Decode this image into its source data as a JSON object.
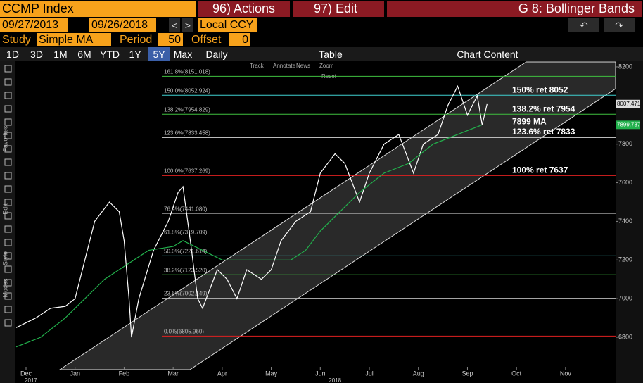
{
  "header": {
    "ticker": "CCMP Index",
    "actions": "96) Actions",
    "edit": "97) Edit",
    "page": "G 8: Bollinger Bands"
  },
  "toolbar": {
    "start": "09/27/2013",
    "end": "09/26/2018",
    "currency": "Local CCY",
    "study_label": "Study",
    "study": "Simple MA",
    "period_label": "Period",
    "period": "50",
    "offset_label": "Offset",
    "offset": "0"
  },
  "ranges": {
    "items": [
      "1D",
      "3D",
      "1M",
      "6M",
      "YTD",
      "1Y",
      "5Y",
      "Max"
    ],
    "selected": 6,
    "frequency": "Daily",
    "table": "Table",
    "content": "Chart Content"
  },
  "chart_tools": [
    "Track",
    "Annotate",
    "News",
    "Zoom",
    "Reset"
  ],
  "side_labels": [
    "Favorites",
    "Edit",
    "Style",
    "Modes"
  ],
  "chart_data": {
    "type": "line",
    "xlim": [
      -0.215,
      12.02
    ],
    "ylim": [
      6647,
      8229
    ],
    "xticks": [
      {
        "value": 0,
        "label": "Dec"
      },
      {
        "value": 1,
        "label": "Jan"
      },
      {
        "value": 2,
        "label": "Feb"
      },
      {
        "value": 3,
        "label": "Mar"
      },
      {
        "value": 4,
        "label": "Apr"
      },
      {
        "value": 5,
        "label": "May"
      },
      {
        "value": 6,
        "label": "Jun"
      },
      {
        "value": 7,
        "label": "Jul"
      },
      {
        "value": 8,
        "label": "Aug"
      },
      {
        "value": 9,
        "label": "Sep"
      },
      {
        "value": 10,
        "label": "Oct"
      },
      {
        "value": 11,
        "label": "Nov"
      }
    ],
    "years": [
      {
        "value": 0.1,
        "label": "2017"
      },
      {
        "value": 6.3,
        "label": "2018"
      }
    ],
    "yticks": [
      6800,
      7000,
      7200,
      7400,
      7600,
      7800,
      8000,
      8200
    ],
    "price": {
      "color": "#ffffff",
      "x": [
        -0.2,
        0.2,
        0.5,
        0.8,
        1.0,
        1.2,
        1.4,
        1.7,
        1.9,
        2.0,
        2.1,
        2.15,
        2.3,
        2.6,
        2.9,
        3.1,
        3.2,
        3.35,
        3.5,
        3.6,
        3.9,
        4.1,
        4.3,
        4.5,
        4.8,
        5.0,
        5.2,
        5.5,
        5.8,
        6.0,
        6.3,
        6.5,
        6.8,
        7.0,
        7.3,
        7.6,
        7.9,
        8.1,
        8.4,
        8.6,
        8.8,
        9.0,
        9.2,
        9.3,
        9.4
      ],
      "values": [
        6850,
        6900,
        6950,
        6960,
        7000,
        7200,
        7400,
        7500,
        7450,
        7300,
        7000,
        6800,
        7000,
        7250,
        7400,
        7550,
        7580,
        7300,
        7000,
        6950,
        7150,
        7100,
        7000,
        7150,
        7100,
        7150,
        7300,
        7400,
        7450,
        7650,
        7750,
        7700,
        7500,
        7650,
        7800,
        7850,
        7650,
        7800,
        7850,
        8000,
        8100,
        7950,
        8050,
        7900,
        8007
      ]
    },
    "ma": {
      "color": "#22b14c",
      "x": [
        -0.2,
        0.3,
        0.8,
        1.2,
        1.6,
        1.9,
        2.2,
        2.5,
        3.0,
        3.2,
        3.6,
        4.0,
        4.5,
        5.0,
        5.4,
        5.7,
        6.0,
        6.4,
        6.8,
        7.3,
        7.8,
        8.3,
        8.8,
        9.3
      ],
      "values": [
        6750,
        6800,
        6900,
        7000,
        7100,
        7150,
        7200,
        7250,
        7270,
        7300,
        7250,
        7200,
        7200,
        7200,
        7200,
        7250,
        7350,
        7450,
        7550,
        7650,
        7700,
        7800,
        7850,
        7900
      ]
    },
    "levels": [
      {
        "label": "161.8%(8151.018)",
        "value": 8151.018,
        "color": "#3fbf3f"
      },
      {
        "label": "150.0%(8052.924)",
        "value": 8052.924,
        "color": "#3fd0d0"
      },
      {
        "label": "138.2%(7954.829)",
        "value": 7954.829,
        "color": "#3fbf3f"
      },
      {
        "label": "123.6%(7833.458)",
        "value": 7833.458,
        "color": "#bbbbbb"
      },
      {
        "label": "100.0%(7637.269)",
        "value": 7637.269,
        "color": "#e02020"
      },
      {
        "label": "76.4%(7441.080)",
        "value": 7441.08,
        "color": "#bbbbbb"
      },
      {
        "label": "61.8%(7319.709)",
        "value": 7319.709,
        "color": "#3fbf3f"
      },
      {
        "label": "50.0%(7221.614)",
        "value": 7221.614,
        "color": "#3fd0d0"
      },
      {
        "label": "38.2%(7123.520)",
        "value": 7123.52,
        "color": "#3fbf3f"
      },
      {
        "label": "23.6%(7002.149)",
        "value": 7002.149,
        "color": "#bbbbbb"
      },
      {
        "label": "0.0%(6805.960)",
        "value": 6805.96,
        "color": "#e02020"
      }
    ],
    "annotations": [
      {
        "text": "150% ret 8052",
        "value": 8052
      },
      {
        "text": "138.2% ret 7954",
        "value": 7954
      },
      {
        "text": "7899 MA",
        "value": 7899
      },
      {
        "text": "123.6% ret 7833",
        "value": 7833
      },
      {
        "text": "100% ret 7637",
        "value": 7637
      }
    ],
    "last_price": {
      "label": "8007.471",
      "value": 8007.471
    },
    "last_ma": {
      "label": "7899.737",
      "value": 7899.737
    }
  }
}
